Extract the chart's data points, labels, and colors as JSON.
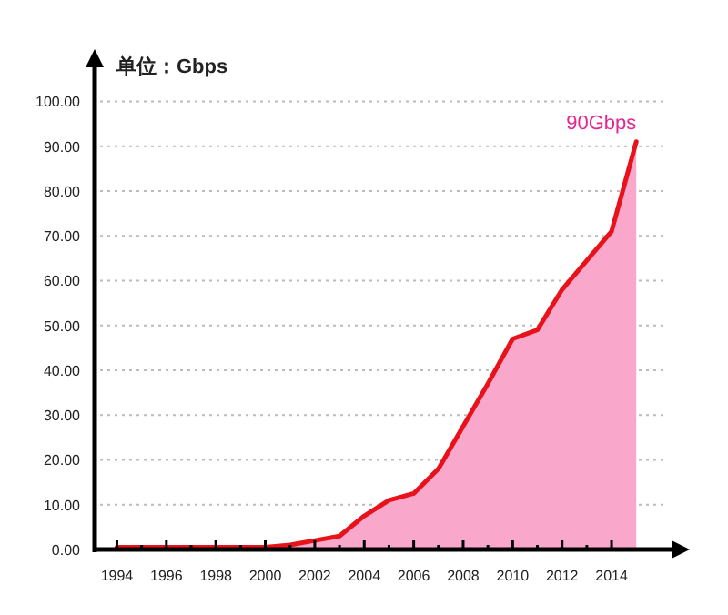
{
  "chart_data": {
    "type": "area",
    "ylabel": "单位：Gbps",
    "x": [
      1994,
      1995,
      1996,
      1997,
      1998,
      1999,
      2000,
      2001,
      2002,
      2003,
      2004,
      2005,
      2006,
      2007,
      2008,
      2009,
      2010,
      2011,
      2012,
      2013,
      2014,
      2015
    ],
    "series": [
      {
        "color": "#e8121a",
        "values": [
          0.5,
          0.5,
          0.5,
          0.5,
          0.5,
          0.5,
          0.5,
          1,
          2,
          3,
          7.5,
          11,
          12.5,
          18,
          27.5,
          37,
          47,
          49,
          58,
          64.5,
          71,
          91
        ]
      }
    ],
    "xlim": [
      1993.1,
      2016.5
    ],
    "xticks": [
      1994,
      {
        "value": 1995,
        "label": null
      },
      1996,
      {
        "value": 1997,
        "label": null
      },
      1998,
      {
        "value": 1999,
        "label": null
      },
      2000,
      {
        "value": 2001,
        "label": null
      },
      2002,
      {
        "value": 2003,
        "label": null
      },
      2004,
      {
        "value": 2005,
        "label": null
      },
      2006,
      {
        "value": 2007,
        "label": null
      },
      2008,
      {
        "value": 2009,
        "label": null
      },
      2010,
      {
        "value": 2011,
        "label": null
      },
      2012,
      {
        "value": 2013,
        "label": null
      },
      2014
    ],
    "ylim": [
      0,
      108
    ],
    "yticks": [
      {
        "value": 0,
        "label": "0.00"
      },
      {
        "value": 10,
        "label": "10.00"
      },
      {
        "value": 20,
        "label": "20.00"
      },
      {
        "value": 30,
        "label": "30.00"
      },
      {
        "value": 40,
        "label": "40.00"
      },
      {
        "value": 50,
        "label": "50.00"
      },
      {
        "value": 60,
        "label": "60.00"
      },
      {
        "value": 70,
        "label": "70.00"
      },
      {
        "value": 80,
        "label": "80.00"
      },
      {
        "value": 90,
        "label": "90.00"
      },
      {
        "value": 100,
        "label": "100.00"
      }
    ],
    "grid": "y",
    "annotations": [
      {
        "text": "90Gbps",
        "x": 2015,
        "y": 91
      }
    ]
  }
}
